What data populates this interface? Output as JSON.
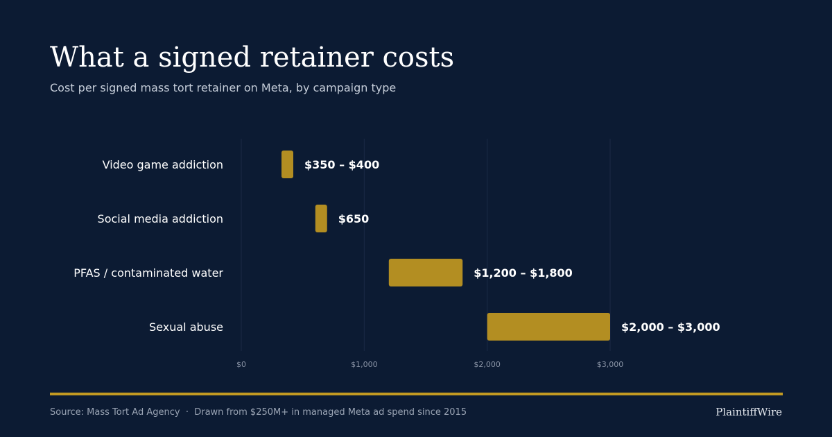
{
  "header": {
    "title": "What a signed retainer costs",
    "subtitle": "Cost per signed mass tort retainer on Meta, by campaign type"
  },
  "chart_data": {
    "type": "bar",
    "orientation": "horizontal",
    "categories": [
      "Video game addiction",
      "Social media addiction",
      "PFAS / contaminated water",
      "Sexual abuse"
    ],
    "ranges": [
      [
        350,
        400
      ],
      [
        650,
        650
      ],
      [
        1200,
        1800
      ],
      [
        2000,
        3000
      ]
    ],
    "value_labels": [
      "$350 – $400",
      "$650",
      "$1,200 – $1,800",
      "$2,000 – $3,000"
    ],
    "x_ticks": [
      0,
      1000,
      2000,
      3000
    ],
    "x_tick_labels": [
      "$0",
      "$1,000",
      "$2,000",
      "$3,000"
    ],
    "xlim": [
      0,
      3000
    ],
    "grid": true,
    "colors": {
      "bar": "#b38e22",
      "grid": "#1b2a45",
      "tick_label": "#8a94a6",
      "category_label": "#ffffff",
      "value_label": "#ffffff"
    }
  },
  "footer": {
    "source": "Source: Mass Tort Ad Agency  ·  Drawn from $250M+ in managed Meta ad spend since 2015",
    "brand": "PlaintiffWire"
  }
}
